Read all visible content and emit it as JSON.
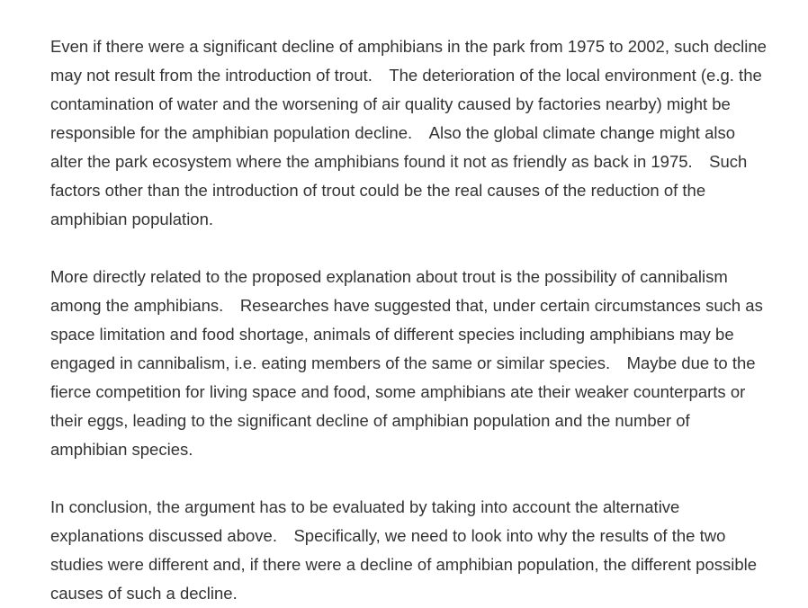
{
  "paragraphs": [
    "Even if there were a significant decline of amphibians in the park from 1975 to 2002, such decline may not result from the introduction of trout.　The deterioration of the local environment (e.g. the contamination of water and the worsening of air quality caused by factories nearby) might be responsible for the amphibian population decline.　Also the global climate change might also alter the park ecosystem where the amphibians found it not as friendly as back in 1975.　Such factors other than the introduction of trout could be the real causes of the reduction of the amphibian population.",
    "More directly related to the proposed explanation about trout is the possibility of cannibalism among the amphibians.　Researches have suggested that, under certain circumstances such as space limitation and food shortage, animals of different species including amphibians may be engaged in cannibalism, i.e. eating members of the same or similar species.　Maybe due to the fierce competition for living space and food, some amphibians ate their weaker counterparts or their eggs, leading to the significant decline of amphibian population and the number of amphibian species.",
    "In conclusion, the argument has to be evaluated by taking into account the alternative explanations discussed above.　Specifically, we need to look into why the results of the two studies were different and, if there were a decline of amphibian population, the different possible causes of such a decline."
  ]
}
